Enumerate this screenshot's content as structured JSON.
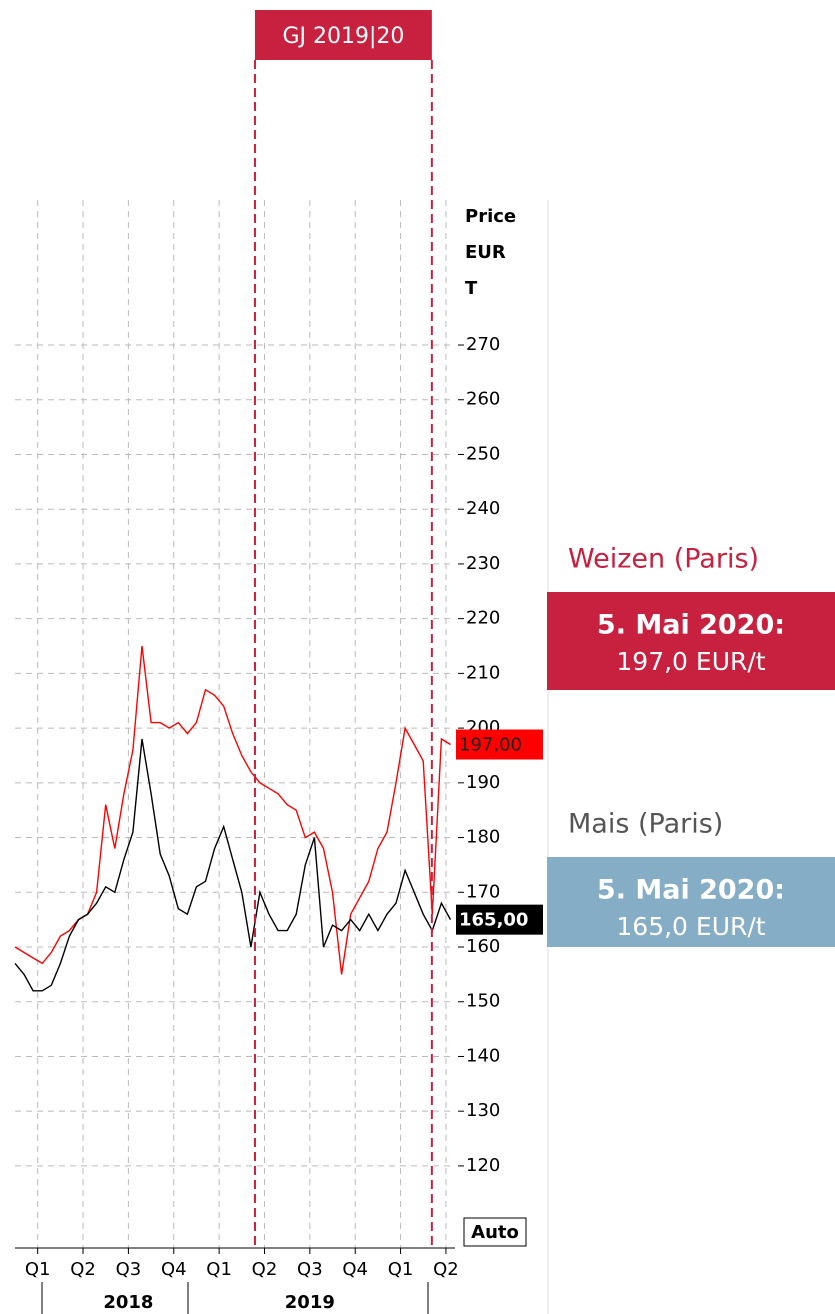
{
  "chart_data": {
    "type": "line",
    "ylabel_lines": [
      "Price",
      "EUR",
      "T"
    ],
    "scale_mode": "Auto",
    "xlim": [
      -0.5,
      9.2
    ],
    "ylim": [
      105,
      296.5
    ],
    "grid": true,
    "xticks": [
      {
        "value": 0,
        "label": "Q1"
      },
      {
        "value": 1,
        "label": "Q2"
      },
      {
        "value": 2,
        "label": "Q3"
      },
      {
        "value": 3,
        "label": "Q4"
      },
      {
        "value": 4,
        "label": "Q1"
      },
      {
        "value": 5,
        "label": "Q2"
      },
      {
        "value": 6,
        "label": "Q3"
      },
      {
        "value": 7,
        "label": "Q4"
      },
      {
        "value": 8,
        "label": "Q1"
      },
      {
        "value": 9,
        "label": "Q2"
      }
    ],
    "yticks": [
      120,
      130,
      140,
      150,
      160,
      170,
      180,
      190,
      200,
      210,
      220,
      230,
      240,
      250,
      260,
      270
    ],
    "x_groups": [
      {
        "label": "2018",
        "center": 2
      },
      {
        "label": "2019",
        "center": 6
      }
    ],
    "period": {
      "label": "GJ 2019|20",
      "start": 4.79,
      "end": 8.69,
      "color": "#c8203f"
    },
    "x": [
      -0.5,
      -0.3,
      -0.1,
      0.1,
      0.3,
      0.5,
      0.7,
      0.9,
      1.1,
      1.3,
      1.5,
      1.7,
      1.9,
      2.1,
      2.3,
      2.5,
      2.7,
      2.9,
      3.1,
      3.3,
      3.5,
      3.7,
      3.9,
      4.1,
      4.3,
      4.5,
      4.7,
      4.9,
      5.1,
      5.3,
      5.5,
      5.7,
      5.9,
      6.1,
      6.3,
      6.5,
      6.7,
      6.9,
      7.1,
      7.3,
      7.5,
      7.7,
      7.9,
      8.1,
      8.3,
      8.5,
      8.7,
      8.9,
      9.1
    ],
    "series": [
      {
        "name": "Weizen (Paris)",
        "color": "#ff0000",
        "last_label": "197,00",
        "label_text_color": "#222222",
        "panel": {
          "date": "5. Mai 2020:",
          "text": "197,0 EUR/t",
          "color": "#c8203f",
          "name_color": "#c8203f"
        },
        "values": [
          160,
          159,
          158,
          157,
          159,
          162,
          163,
          165,
          166,
          170,
          186,
          178,
          188,
          196,
          215,
          201,
          201,
          200,
          201,
          199,
          201,
          207,
          206,
          204,
          199,
          195,
          192,
          190,
          189,
          188,
          186,
          185,
          180,
          181,
          178,
          170,
          155,
          166,
          169,
          172,
          178,
          181,
          190,
          200,
          197,
          194,
          166,
          198,
          197
        ]
      },
      {
        "name": "Mais (Paris)",
        "color": "#000000",
        "last_label": "165,00",
        "label_text_color": "#ffffff",
        "panel": {
          "date": "5. Mai 2020:",
          "text": "165,0 EUR/t",
          "color": "#85adc5",
          "name_color": "#555555"
        },
        "values": [
          157,
          155,
          152,
          152,
          153,
          157,
          162,
          165,
          166,
          168,
          171,
          170,
          176,
          181,
          198,
          188,
          177,
          173,
          167,
          166,
          171,
          172,
          178,
          182,
          176,
          170,
          160,
          170,
          166,
          163,
          163,
          166,
          175,
          180,
          160,
          164,
          163,
          165,
          163,
          166,
          163,
          166,
          168,
          174,
          170,
          166,
          163,
          168,
          165
        ]
      }
    ]
  }
}
